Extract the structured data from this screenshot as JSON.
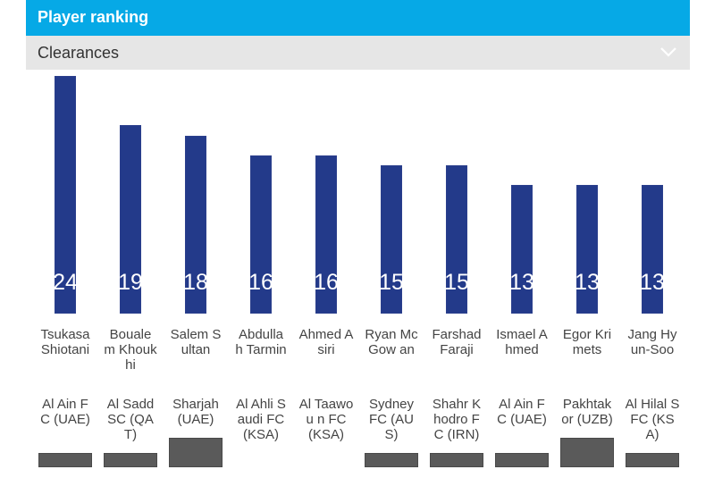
{
  "header": {
    "title": "Player ranking"
  },
  "filter": {
    "selected": "Clearances",
    "icon": "chevron-down-icon"
  },
  "colors": {
    "header_bg": "#06a9e6",
    "bar": "#233a8a",
    "filter_bg": "#e6e6e6"
  },
  "chart_data": {
    "type": "bar",
    "title": "",
    "categories": [
      "Tsukasa Shiotani",
      "Bouale m Khoukhi",
      "Salem Sultan",
      "Abdulla h Tarmin",
      "Ahmed Asiri",
      "Ryan McGow an",
      "Farshad Faraji",
      "Ismael Ahmed",
      "Egor Krimets",
      "Jang Hyun-Soo"
    ],
    "teams": [
      "Al Ain FC (UAE)",
      "Al Sadd SC (QAT)",
      "Sharjah (UAE)",
      "Al Ahli Saudi FC (KSA)",
      "Al Taawou n FC (KSA)",
      "Sydney FC (AUS)",
      "Shahr Khodro FC (IRN)",
      "Al Ain FC (UAE)",
      "Pakhtak or (UZB)",
      "Al Hilal SFC (KSA)"
    ],
    "values": [
      24,
      19,
      18,
      16,
      16,
      15,
      15,
      13,
      13,
      13
    ],
    "ylim": [
      0,
      24
    ]
  }
}
